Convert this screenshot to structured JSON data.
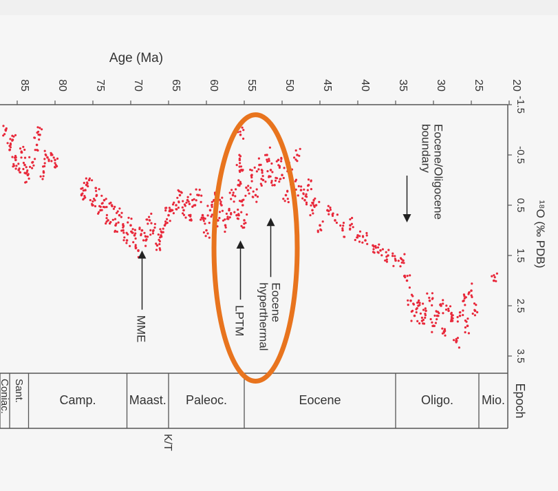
{
  "chart_data": {
    "type": "scatter",
    "title": "",
    "xlabel": "Age (Ma)",
    "ylabel": "¹⁸O (‰ PDB)",
    "x_ticks": [
      85,
      80,
      75,
      70,
      65,
      60,
      55,
      50,
      45,
      40,
      35,
      30,
      25,
      20
    ],
    "y_ticks": [
      -1.5,
      -0.5,
      0.5,
      1.5,
      2.5,
      3.5
    ],
    "xlim": [
      88,
      20
    ],
    "ylim": [
      -1.5,
      3.9
    ],
    "axes_orientation": "rotated 90 degrees clockwise; age axis along top, δ18O axis on right",
    "series": [
      {
        "color": "#e8283a",
        "points": [
          [
            86.5,
            -1.0
          ],
          [
            86.0,
            -0.6
          ],
          [
            85.6,
            -0.8
          ],
          [
            85.2,
            -0.4
          ],
          [
            84.8,
            -0.2
          ],
          [
            84.4,
            -0.55
          ],
          [
            84.0,
            -0.3
          ],
          [
            83.6,
            -0.1
          ],
          [
            83.0,
            -0.35
          ],
          [
            82.4,
            -0.7
          ],
          [
            82.0,
            -0.9
          ],
          [
            81.5,
            -0.15
          ],
          [
            81.0,
            -0.45
          ],
          [
            80.5,
            -0.5
          ],
          [
            80.0,
            -0.4
          ],
          [
            76.5,
            0.3
          ],
          [
            76.0,
            0.2
          ],
          [
            75.5,
            0.0
          ],
          [
            75.0,
            0.5
          ],
          [
            74.5,
            0.3
          ],
          [
            74.0,
            0.6
          ],
          [
            73.5,
            0.4
          ],
          [
            73.0,
            0.8
          ],
          [
            72.5,
            0.5
          ],
          [
            72.0,
            0.9
          ],
          [
            71.5,
            0.7
          ],
          [
            71.0,
            1.0
          ],
          [
            70.5,
            1.2
          ],
          [
            70.0,
            0.9
          ],
          [
            69.5,
            1.1
          ],
          [
            69.0,
            1.4
          ],
          [
            68.5,
            1.0
          ],
          [
            68.0,
            1.2
          ],
          [
            67.5,
            0.8
          ],
          [
            67.0,
            1.0
          ],
          [
            66.5,
            1.3
          ],
          [
            66.0,
            1.1
          ],
          [
            65.5,
            0.9
          ],
          [
            65.0,
            0.7
          ],
          [
            64.5,
            0.6
          ],
          [
            64.0,
            0.5
          ],
          [
            63.5,
            0.3
          ],
          [
            63.0,
            0.6
          ],
          [
            62.5,
            0.4
          ],
          [
            62.0,
            0.8
          ],
          [
            61.5,
            0.5
          ],
          [
            61.0,
            0.3
          ],
          [
            60.5,
            0.7
          ],
          [
            60.0,
            1.0
          ],
          [
            59.5,
            0.6
          ],
          [
            59.0,
            0.4
          ],
          [
            58.5,
            0.8
          ],
          [
            58.0,
            0.5
          ],
          [
            57.5,
            0.9
          ],
          [
            57.0,
            0.6
          ],
          [
            56.5,
            0.3
          ],
          [
            56.0,
            0.7
          ],
          [
            55.8,
            0.1
          ],
          [
            55.6,
            -0.4
          ],
          [
            55.5,
            -0.9
          ],
          [
            55.4,
            -0.2
          ],
          [
            55.2,
            0.5
          ],
          [
            55.0,
            0.8
          ],
          [
            54.5,
            0.2
          ],
          [
            54.0,
            -0.1
          ],
          [
            53.5,
            0.3
          ],
          [
            53.0,
            -0.3
          ],
          [
            52.5,
            0.0
          ],
          [
            52.0,
            -0.5
          ],
          [
            51.5,
            -0.2
          ],
          [
            51.0,
            0.1
          ],
          [
            50.5,
            -0.4
          ],
          [
            50.0,
            -0.1
          ],
          [
            49.5,
            0.3
          ],
          [
            49.0,
            -0.2
          ],
          [
            48.5,
            0.1
          ],
          [
            48.0,
            -0.5
          ],
          [
            47.5,
            0.2
          ],
          [
            47.0,
            0.4
          ],
          [
            46.5,
            0.1
          ],
          [
            46.0,
            0.6
          ],
          [
            45.5,
            0.5
          ],
          [
            45.0,
            0.9
          ],
          [
            44.0,
            0.6
          ],
          [
            43.0,
            0.8
          ],
          [
            42.0,
            1.0
          ],
          [
            41.0,
            0.9
          ],
          [
            40.0,
            1.1
          ],
          [
            39.0,
            1.2
          ],
          [
            38.0,
            1.3
          ],
          [
            37.0,
            1.4
          ],
          [
            36.0,
            1.5
          ],
          [
            35.0,
            1.6
          ],
          [
            34.0,
            1.6
          ],
          [
            33.5,
            2.0
          ],
          [
            33.0,
            2.4
          ],
          [
            32.5,
            2.7
          ],
          [
            32.0,
            2.5
          ],
          [
            31.5,
            2.8
          ],
          [
            31.0,
            2.6
          ],
          [
            30.5,
            2.4
          ],
          [
            30.0,
            2.9
          ],
          [
            29.5,
            2.7
          ],
          [
            29.0,
            2.5
          ],
          [
            28.5,
            3.0
          ],
          [
            28.0,
            2.6
          ],
          [
            27.5,
            2.8
          ],
          [
            27.0,
            3.2
          ],
          [
            26.5,
            2.7
          ],
          [
            26.0,
            2.4
          ],
          [
            25.5,
            2.9
          ],
          [
            25.0,
            2.2
          ],
          [
            24.5,
            2.6
          ],
          [
            22.0,
            2.0
          ]
        ]
      }
    ],
    "epochs": [
      {
        "label": "Coniac.",
        "start": 89,
        "end": 86
      },
      {
        "label": "Sant.",
        "start": 86,
        "end": 83.5
      },
      {
        "label": "Camp.",
        "start": 83.5,
        "end": 70.5
      },
      {
        "label": "Maast.",
        "start": 70.5,
        "end": 65
      },
      {
        "label": "Paleoc.",
        "start": 65,
        "end": 55
      },
      {
        "label": "Eocene",
        "start": 55,
        "end": 35
      },
      {
        "label": "Oligo.",
        "start": 35,
        "end": 24
      },
      {
        "label": "Mio.",
        "start": 24,
        "end": 20
      }
    ],
    "epoch_header": "Epoch",
    "boundary_label": "K/T",
    "boundary_age": 65,
    "annotations": [
      {
        "text": "MME",
        "age": 68.5,
        "d18o": 1.4
      },
      {
        "text": "LPTM",
        "age": 55.5,
        "d18o": 1.2
      },
      {
        "text": "Eocene hyperthermal",
        "age": 51.5,
        "d18o": 0.75
      },
      {
        "text": "Eocene/Oligocene boundary",
        "age": 33.5,
        "d18o": -0.5
      }
    ],
    "highlight": {
      "shape": "ellipse",
      "color": "#e8741e",
      "age_range": [
        59,
        48
      ],
      "d18o_range": [
        -1.3,
        4.0
      ]
    },
    "grid": false
  }
}
